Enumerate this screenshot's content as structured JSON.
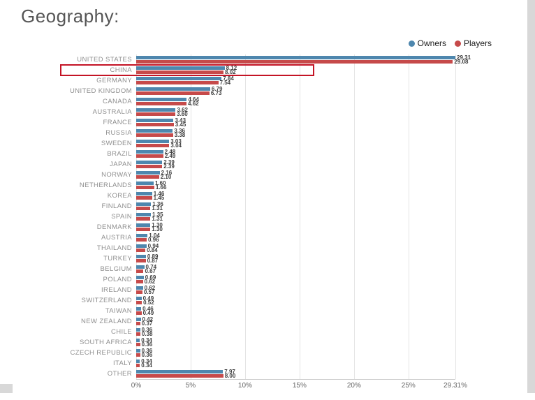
{
  "page": {
    "title": "Geography:"
  },
  "chart_data": {
    "type": "bar",
    "orientation": "horizontal",
    "title": "Geography:",
    "legend_position": "top-right",
    "grid": true,
    "categories": [
      "UNITED STATES",
      "CHINA",
      "GERMANY",
      "UNITED KINGDOM",
      "CANADA",
      "AUSTRALIA",
      "FRANCE",
      "RUSSIA",
      "SWEDEN",
      "BRAZIL",
      "JAPAN",
      "NORWAY",
      "NETHERLANDS",
      "KOREA",
      "FINLAND",
      "SPAIN",
      "DENMARK",
      "AUSTRIA",
      "THAILAND",
      "TURKEY",
      "BELGIUM",
      "POLAND",
      "IRELAND",
      "SWITZERLAND",
      "TAIWAN",
      "NEW ZEALAND",
      "CHILE",
      "SOUTH AFRICA",
      "CZECH REPUBLIC",
      "ITALY",
      "OTHER"
    ],
    "series": [
      {
        "name": "Owners",
        "color": "#4e87ae",
        "values": [
          29.31,
          8.12,
          7.84,
          6.79,
          4.64,
          3.62,
          3.43,
          3.36,
          3.03,
          2.48,
          2.39,
          2.16,
          1.6,
          1.46,
          1.36,
          1.35,
          1.3,
          1.04,
          0.94,
          0.89,
          0.74,
          0.69,
          0.62,
          0.49,
          0.46,
          0.42,
          0.36,
          0.34,
          0.36,
          0.34,
          7.97
        ]
      },
      {
        "name": "Players",
        "color": "#c64a4a",
        "values": [
          29.08,
          8.02,
          7.54,
          6.73,
          4.62,
          3.6,
          3.45,
          3.38,
          3.04,
          2.49,
          2.39,
          2.1,
          1.66,
          1.45,
          1.31,
          1.31,
          1.3,
          0.96,
          0.84,
          0.87,
          0.67,
          0.62,
          0.57,
          0.52,
          0.49,
          0.37,
          0.38,
          0.36,
          0.36,
          0.34,
          8.0
        ]
      }
    ],
    "xlabel": "",
    "ylabel": "",
    "xlim": [
      0,
      29.31
    ],
    "xticks": [
      {
        "value": 0,
        "label": "0%"
      },
      {
        "value": 5,
        "label": "5%"
      },
      {
        "value": 10,
        "label": "10%"
      },
      {
        "value": 15,
        "label": "15%"
      },
      {
        "value": 20,
        "label": "20%"
      },
      {
        "value": 25,
        "label": "25%"
      },
      {
        "value": 29.31,
        "label": "29.31%"
      }
    ],
    "annotation": {
      "type": "highlight-box",
      "category": "CHINA",
      "color": "#c41425"
    }
  }
}
